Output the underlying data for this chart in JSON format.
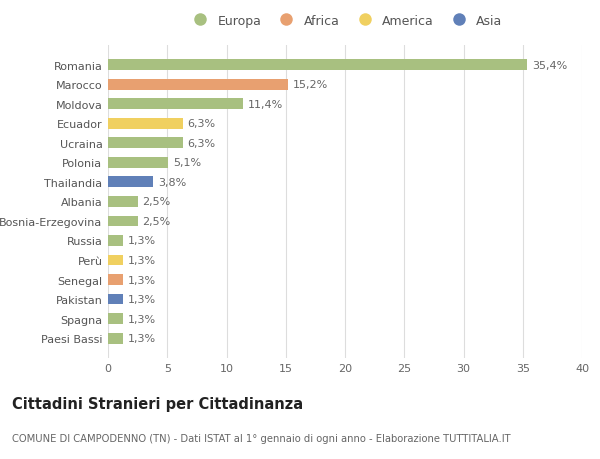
{
  "countries": [
    "Romania",
    "Marocco",
    "Moldova",
    "Ecuador",
    "Ucraina",
    "Polonia",
    "Thailandia",
    "Albania",
    "Bosnia-Erzegovina",
    "Russia",
    "Perù",
    "Senegal",
    "Pakistan",
    "Spagna",
    "Paesi Bassi"
  ],
  "values": [
    35.4,
    15.2,
    11.4,
    6.3,
    6.3,
    5.1,
    3.8,
    2.5,
    2.5,
    1.3,
    1.3,
    1.3,
    1.3,
    1.3,
    1.3
  ],
  "labels": [
    "35,4%",
    "15,2%",
    "11,4%",
    "6,3%",
    "6,3%",
    "5,1%",
    "3,8%",
    "2,5%",
    "2,5%",
    "1,3%",
    "1,3%",
    "1,3%",
    "1,3%",
    "1,3%",
    "1,3%"
  ],
  "continents": [
    "Europa",
    "Africa",
    "Europa",
    "America",
    "Europa",
    "Europa",
    "Asia",
    "Europa",
    "Europa",
    "Europa",
    "America",
    "Africa",
    "Asia",
    "Europa",
    "Europa"
  ],
  "continent_colors": {
    "Europa": "#a8c080",
    "Africa": "#e8a070",
    "America": "#f0d060",
    "Asia": "#6080b8"
  },
  "legend_order": [
    "Europa",
    "Africa",
    "America",
    "Asia"
  ],
  "xlim": [
    0,
    40
  ],
  "xticks": [
    0,
    5,
    10,
    15,
    20,
    25,
    30,
    35,
    40
  ],
  "title": "Cittadini Stranieri per Cittadinanza",
  "subtitle": "COMUNE DI CAMPODENNO (TN) - Dati ISTAT al 1° gennaio di ogni anno - Elaborazione TUTTITALIA.IT",
  "bg_color": "#ffffff",
  "grid_color": "#dddddd",
  "bar_height": 0.55,
  "label_fontsize": 8,
  "tick_fontsize": 8,
  "title_fontsize": 10.5,
  "subtitle_fontsize": 7.2
}
